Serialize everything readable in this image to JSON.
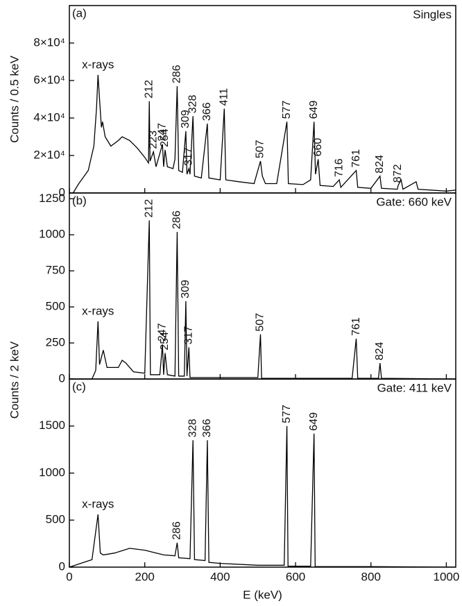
{
  "chart_data": [
    {
      "type": "line",
      "panel_label": "(a)",
      "title": "Singles",
      "ylabel": "Counts / 0.5 keV",
      "color": "#000000",
      "xlim": [
        0,
        1025
      ],
      "xticks": [
        0,
        200,
        400,
        600,
        800,
        1000
      ],
      "ylim": [
        0,
        100000
      ],
      "yticks": [
        0,
        {
          "value": 20000,
          "label": "2×10⁴"
        },
        {
          "value": 40000,
          "label": "4×10⁴"
        },
        {
          "value": 60000,
          "label": "6×10⁴"
        },
        {
          "value": 80000,
          "label": "8×10⁴"
        }
      ],
      "xrays_label": "x-rays",
      "annotations": [
        212,
        223,
        247,
        254,
        286,
        309,
        317,
        328,
        366,
        411,
        507,
        577,
        649,
        660,
        716,
        761,
        824,
        872
      ],
      "x": [
        10,
        25,
        50,
        65,
        72,
        76,
        80,
        85,
        88,
        95,
        110,
        130,
        140,
        160,
        180,
        200,
        210,
        212,
        214,
        223,
        230,
        247,
        250,
        254,
        260,
        275,
        280,
        286,
        290,
        300,
        309,
        312,
        317,
        320,
        328,
        332,
        350,
        366,
        370,
        400,
        411,
        415,
        450,
        490,
        507,
        512,
        520,
        550,
        577,
        581,
        620,
        640,
        649,
        653,
        660,
        665,
        700,
        716,
        720,
        761,
        765,
        800,
        824,
        828,
        870,
        872,
        880,
        885,
        920,
        925,
        1000,
        1024
      ],
      "values": [
        0,
        5000,
        12000,
        25000,
        45000,
        63000,
        50000,
        35000,
        38000,
        30000,
        25000,
        28000,
        30000,
        28000,
        24000,
        19000,
        16000,
        49000,
        17000,
        22000,
        14000,
        26000,
        14000,
        23000,
        14000,
        13000,
        18000,
        57000,
        12000,
        11000,
        33000,
        10000,
        13000,
        10000,
        41000,
        9000,
        8000,
        37000,
        8000,
        7000,
        45000,
        7000,
        6000,
        5000,
        17000,
        9000,
        5000,
        5000,
        38000,
        5000,
        4500,
        7000,
        38000,
        10000,
        18000,
        4000,
        3500,
        7000,
        3000,
        12000,
        3000,
        2500,
        9000,
        2500,
        2000,
        4000,
        7000,
        2000,
        6000,
        2000,
        1000,
        1500
      ]
    },
    {
      "type": "line",
      "panel_label": "(b)",
      "title": "Gate: 660 keV",
      "ylabel": "Counts / 2 keV",
      "color": "#000000",
      "xlim": [
        0,
        1025
      ],
      "xticks": [
        0,
        200,
        400,
        600,
        800,
        1000
      ],
      "ylim": [
        0,
        1290
      ],
      "yticks": [
        0,
        250,
        500,
        750,
        1000,
        1250
      ],
      "xrays_label": "x-rays",
      "annotations": [
        212,
        247,
        254,
        286,
        309,
        317,
        507,
        761,
        824
      ],
      "x": [
        0,
        60,
        70,
        76,
        80,
        90,
        100,
        130,
        140,
        150,
        170,
        200,
        212,
        215,
        240,
        247,
        250,
        254,
        260,
        280,
        286,
        290,
        305,
        309,
        312,
        317,
        320,
        400,
        500,
        507,
        510,
        750,
        761,
        765,
        820,
        824,
        828,
        1024
      ],
      "values": [
        0,
        0,
        60,
        400,
        100,
        200,
        80,
        80,
        130,
        110,
        50,
        40,
        1100,
        30,
        30,
        240,
        30,
        180,
        30,
        20,
        1020,
        20,
        20,
        540,
        20,
        220,
        10,
        10,
        10,
        310,
        5,
        5,
        280,
        5,
        5,
        110,
        5,
        0
      ]
    },
    {
      "type": "line",
      "panel_label": "(c)",
      "title": "Gate: 411 keV",
      "xlabel": "E (keV)",
      "color": "#000000",
      "xlim": [
        0,
        1025
      ],
      "xticks": [
        0,
        200,
        400,
        600,
        800,
        1000
      ],
      "ylim": [
        0,
        2000
      ],
      "yticks": [
        0,
        500,
        1000,
        1500
      ],
      "xrays_label": "x-rays",
      "annotations": [
        286,
        328,
        366,
        577,
        649
      ],
      "x": [
        0,
        30,
        60,
        76,
        82,
        90,
        120,
        160,
        200,
        250,
        280,
        286,
        290,
        320,
        328,
        332,
        360,
        366,
        370,
        400,
        500,
        570,
        577,
        580,
        640,
        649,
        652,
        800,
        1024
      ],
      "values": [
        0,
        40,
        80,
        560,
        150,
        130,
        150,
        200,
        180,
        130,
        120,
        260,
        100,
        90,
        1350,
        80,
        70,
        1350,
        50,
        40,
        20,
        20,
        1500,
        10,
        10,
        1420,
        5,
        5,
        0
      ]
    }
  ]
}
